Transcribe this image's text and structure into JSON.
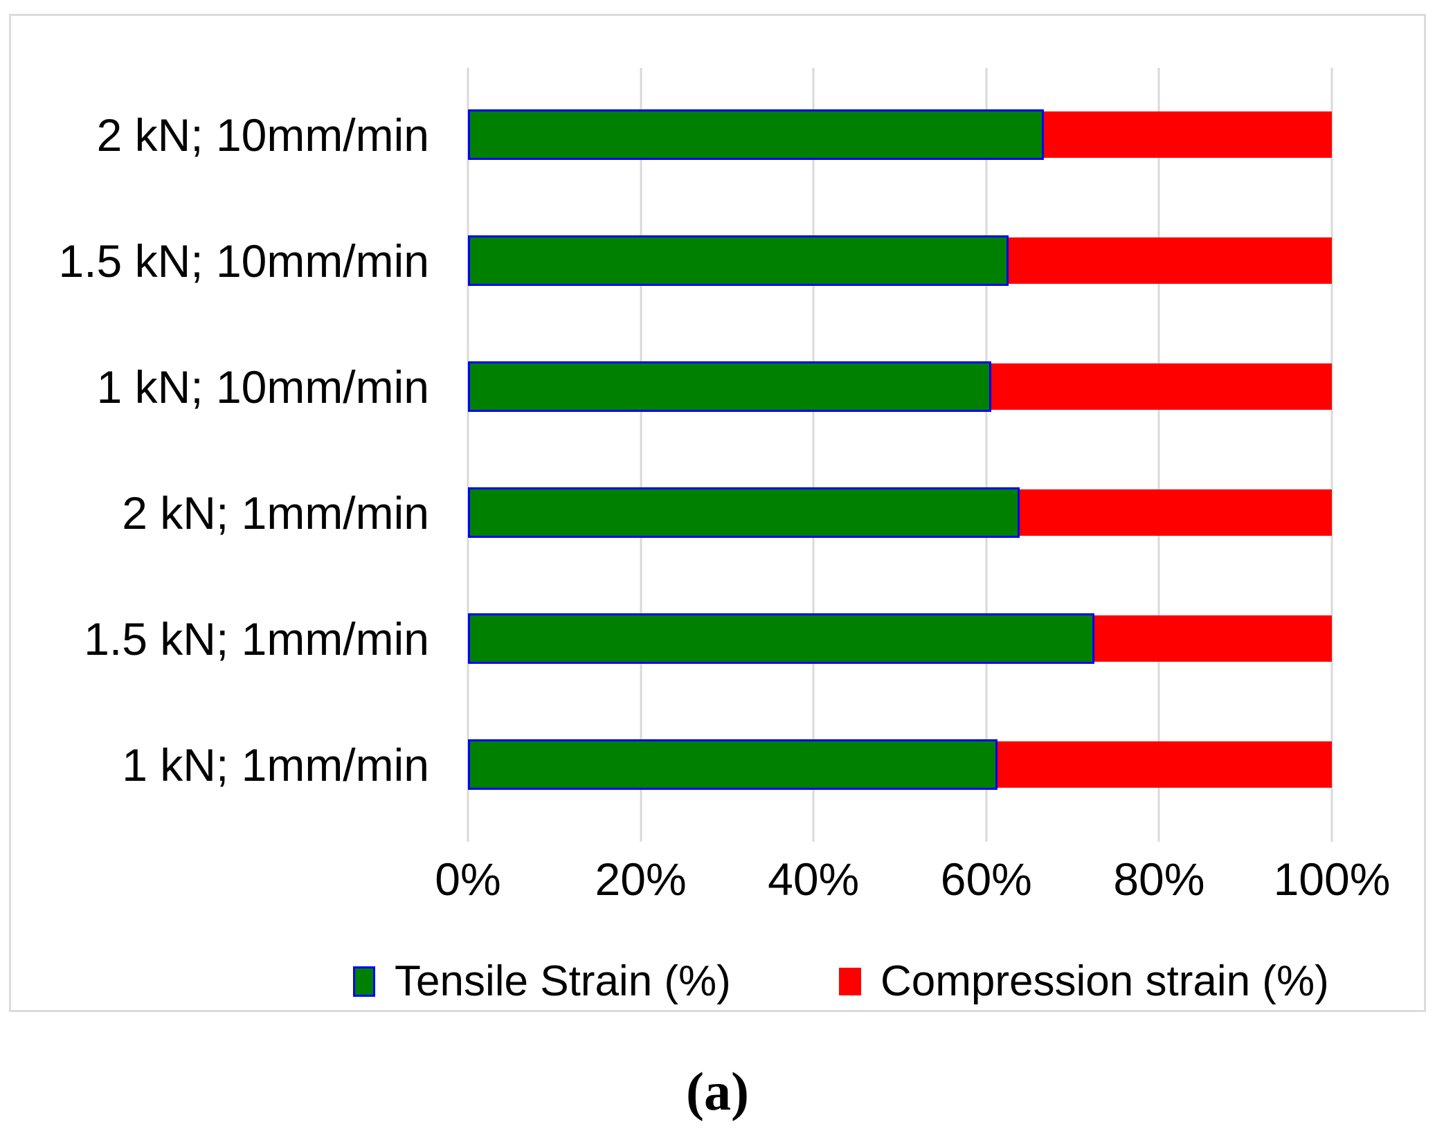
{
  "caption": "(a)",
  "chart_data": {
    "type": "bar",
    "orientation": "horizontal",
    "stacked": true,
    "title": "",
    "xlabel": "",
    "ylabel": "",
    "categories": [
      "2 kN; 10mm/min",
      "1.5 kN; 10mm/min",
      "1 kN; 10mm/min",
      "2 kN; 1mm/min",
      "1.5 kN; 1mm/min",
      "1 kN; 1mm/min"
    ],
    "series": [
      {
        "name": "Tensile Strain (%)",
        "color": "#008000",
        "border_color": "#0000FF",
        "values": [
          66.7,
          62.6,
          60.6,
          63.9,
          72.5,
          61.3
        ]
      },
      {
        "name": "Compression strain (%)",
        "color": "#FF0000",
        "values": [
          33.3,
          37.4,
          39.4,
          36.1,
          27.5,
          38.7
        ]
      }
    ],
    "x_ticks": [
      "0%",
      "20%",
      "40%",
      "60%",
      "80%",
      "100%"
    ],
    "xlim": [
      0,
      100
    ],
    "grid": true,
    "legend_position": "bottom",
    "colors": {
      "gridline": "#D9D9D9",
      "frame_border": "#DBDBDB",
      "text": "#000000",
      "background": "#FFFFFF"
    }
  }
}
